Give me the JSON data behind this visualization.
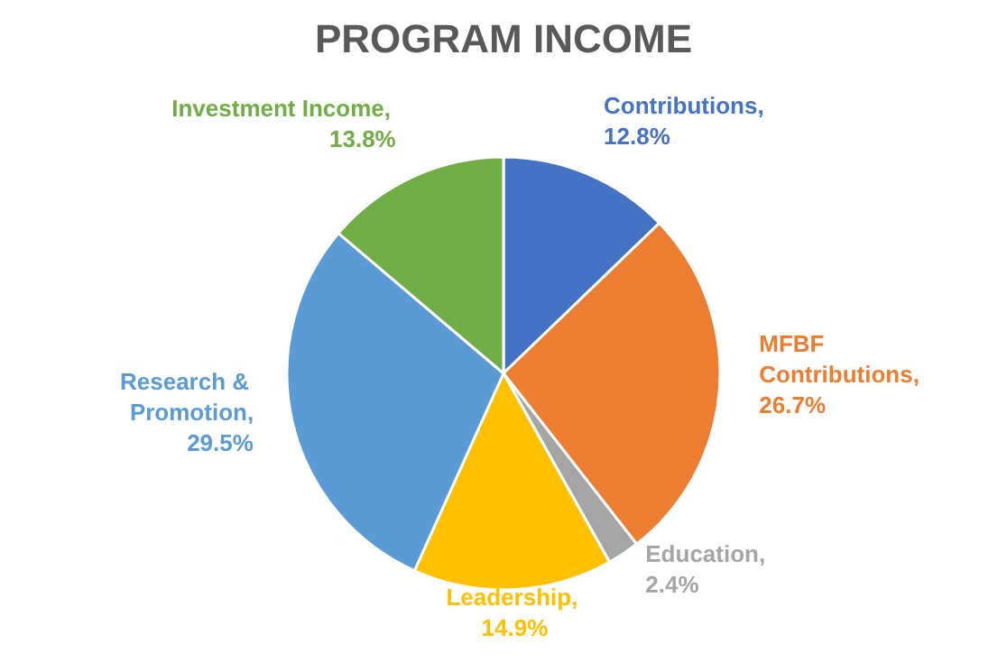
{
  "chart_data": {
    "type": "pie",
    "title": "PROGRAM INCOME",
    "categories": [
      "Contributions",
      "MFBF Contributions",
      "Education",
      "Leadership",
      "Research & Promotion",
      "Investment Income"
    ],
    "values": [
      12.8,
      26.7,
      2.4,
      14.9,
      29.5,
      13.8
    ],
    "value_labels": [
      ", 12.8%",
      ", 26.7%",
      ", 2.4%",
      ", 14.9%",
      ", 29.5%",
      ", 13.8%"
    ],
    "colors": [
      "#4472c4",
      "#ed7d31",
      "#a5a5a5",
      "#ffc000",
      "#5b9bd5",
      "#70ad47"
    ]
  }
}
